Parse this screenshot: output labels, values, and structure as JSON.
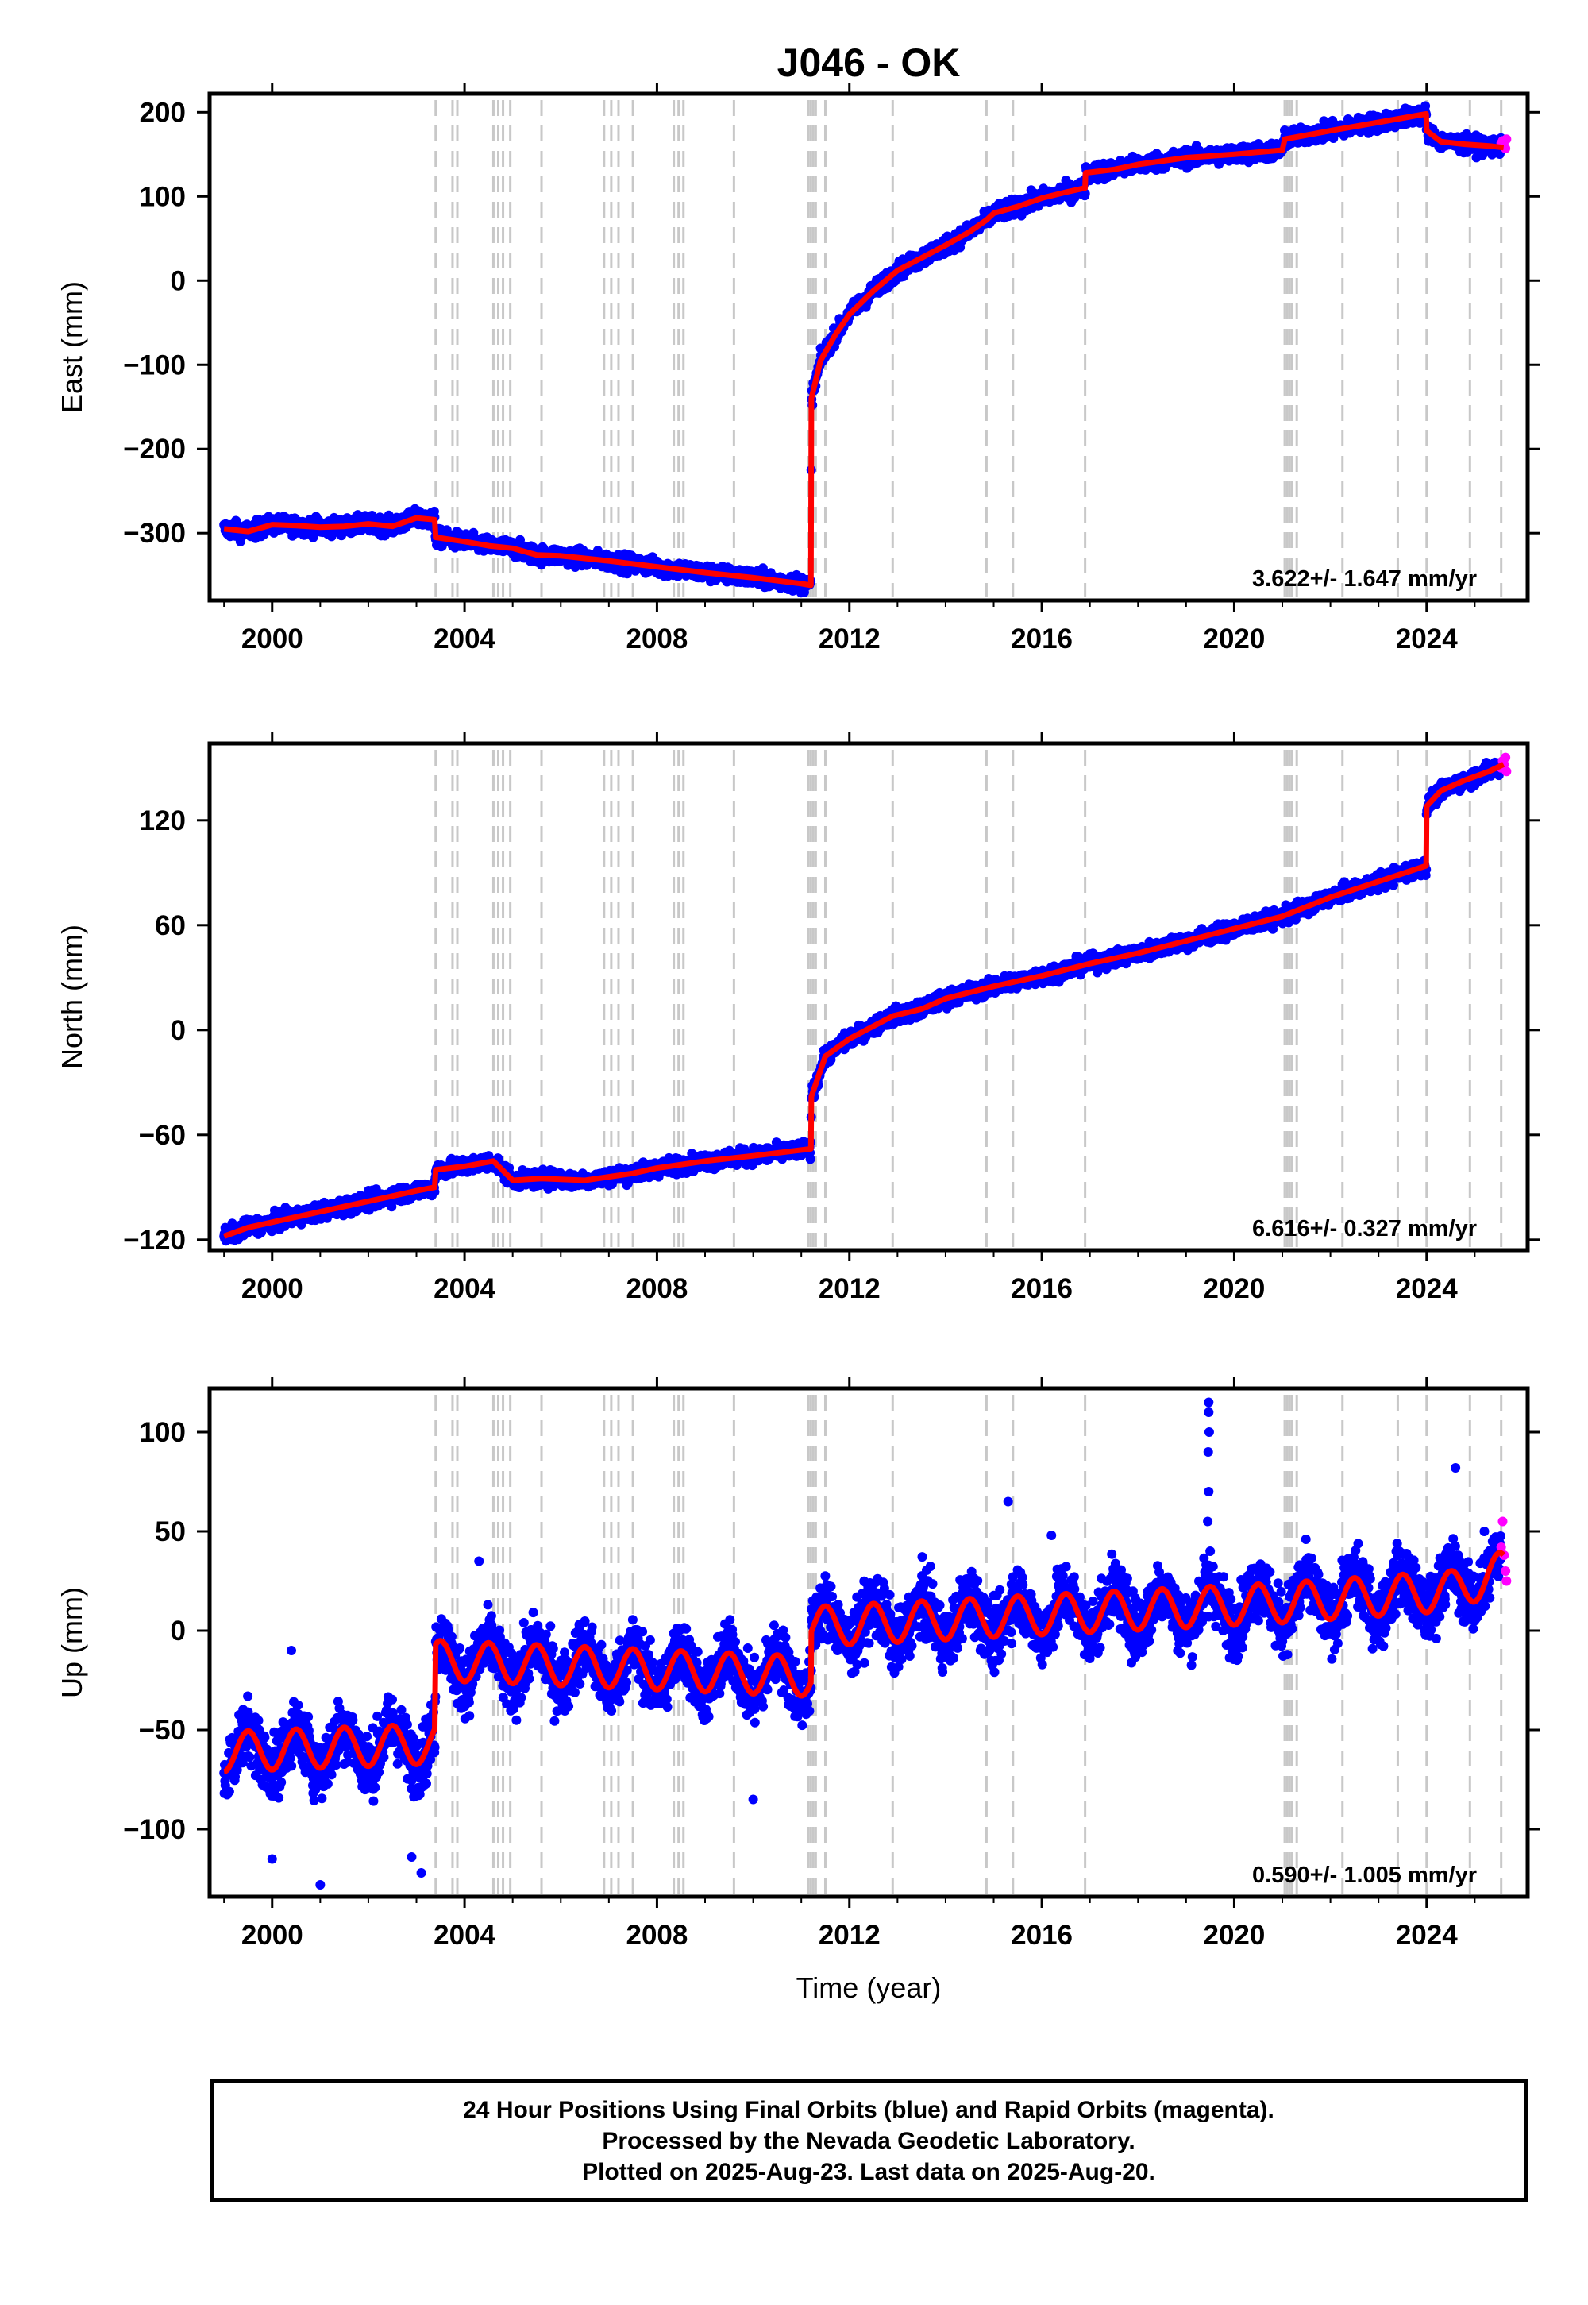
{
  "title": "J046 - OK",
  "x_label": "Time (year)",
  "footer": {
    "line1": "24 Hour Positions Using Final Orbits (blue) and Rapid Orbits (magenta).",
    "line2": "Processed by the Nevada Geodetic Laboratory.",
    "line3": "Plotted on 2025-Aug-23. Last data on 2025-Aug-20."
  },
  "colors": {
    "final_orbit_points": "#0000ff",
    "rapid_orbit_points": "#ff00ff",
    "model_fit": "#ff0000",
    "event_lines": "#c8c8c8"
  },
  "chart_data": [
    {
      "type": "scatter",
      "ylabel": "East (mm)",
      "rate": "3.622+/- 1.647 mm/yr",
      "xlim": [
        1998.7,
        2026.1
      ],
      "ylim": [
        -380,
        222
      ],
      "xticks": [
        2000,
        2004,
        2008,
        2012,
        2016,
        2020,
        2024
      ],
      "yticks": [
        -300,
        -200,
        -100,
        0,
        100,
        200
      ],
      "event_lines": [
        2003.4,
        2003.75,
        2003.85,
        2004.6,
        2004.7,
        2004.8,
        2004.95,
        2005.6,
        2006.9,
        2007.05,
        2007.2,
        2007.5,
        2008.35,
        2008.45,
        2008.55,
        2009.6,
        2011.15,
        2011.2,
        2011.25,
        2011.3,
        2011.5,
        2012.9,
        2014.85,
        2015.4,
        2016.9,
        2021.05,
        2021.1,
        2021.15,
        2021.2,
        2021.3,
        2022.25,
        2023.4,
        2024.0,
        2024.9,
        2025.55
      ],
      "model": [
        [
          1999.0,
          -295
        ],
        [
          1999.5,
          -298
        ],
        [
          2000.0,
          -290
        ],
        [
          2000.5,
          -291
        ],
        [
          2001.0,
          -293
        ],
        [
          2001.5,
          -292
        ],
        [
          2002.0,
          -289
        ],
        [
          2002.5,
          -292
        ],
        [
          2003.0,
          -282
        ],
        [
          2003.38,
          -284
        ],
        [
          2003.4,
          -305
        ],
        [
          2004.0,
          -310
        ],
        [
          2004.5,
          -315
        ],
        [
          2005.0,
          -318
        ],
        [
          2005.5,
          -326
        ],
        [
          2006.0,
          -327
        ],
        [
          2007.0,
          -333
        ],
        [
          2008.0,
          -340
        ],
        [
          2009.0,
          -347
        ],
        [
          2010.0,
          -353
        ],
        [
          2011.0,
          -360
        ],
        [
          2011.2,
          -362
        ],
        [
          2011.21,
          -140
        ],
        [
          2011.4,
          -95
        ],
        [
          2011.7,
          -65
        ],
        [
          2012.0,
          -40
        ],
        [
          2012.5,
          -12
        ],
        [
          2013.0,
          12
        ],
        [
          2013.5,
          27
        ],
        [
          2014.0,
          42
        ],
        [
          2014.5,
          58
        ],
        [
          2014.85,
          72
        ],
        [
          2015.0,
          80
        ],
        [
          2015.5,
          88
        ],
        [
          2016.0,
          98
        ],
        [
          2016.5,
          105
        ],
        [
          2016.9,
          110
        ],
        [
          2016.91,
          128
        ],
        [
          2017.5,
          132
        ],
        [
          2018.0,
          138
        ],
        [
          2019.0,
          146
        ],
        [
          2020.0,
          150
        ],
        [
          2021.0,
          155
        ],
        [
          2021.05,
          168
        ],
        [
          2022.0,
          178
        ],
        [
          2023.0,
          188
        ],
        [
          2023.99,
          198
        ],
        [
          2024.0,
          178
        ],
        [
          2024.3,
          165
        ],
        [
          2024.8,
          162
        ],
        [
          2025.3,
          160
        ],
        [
          2025.6,
          158
        ]
      ],
      "noise": 7
    },
    {
      "type": "scatter",
      "ylabel": "North (mm)",
      "rate": "6.616+/- 0.327 mm/yr",
      "xlim": [
        1998.7,
        2026.1
      ],
      "ylim": [
        -126,
        164
      ],
      "xticks": [
        2000,
        2004,
        2008,
        2012,
        2016,
        2020,
        2024
      ],
      "yticks": [
        -120,
        -60,
        0,
        60,
        120
      ],
      "event_lines": [
        2003.4,
        2003.75,
        2003.85,
        2004.6,
        2004.7,
        2004.8,
        2004.95,
        2005.6,
        2006.9,
        2007.05,
        2007.2,
        2007.5,
        2008.35,
        2008.45,
        2008.55,
        2009.6,
        2011.15,
        2011.2,
        2011.25,
        2011.3,
        2011.5,
        2012.9,
        2014.85,
        2015.4,
        2016.9,
        2021.05,
        2021.1,
        2021.15,
        2021.2,
        2021.3,
        2022.25,
        2023.4,
        2024.0,
        2024.9,
        2025.55
      ],
      "model": [
        [
          1999.0,
          -118
        ],
        [
          1999.5,
          -113
        ],
        [
          2000.0,
          -110
        ],
        [
          2001.0,
          -104
        ],
        [
          2002.0,
          -98
        ],
        [
          2003.0,
          -92
        ],
        [
          2003.38,
          -90
        ],
        [
          2003.4,
          -80
        ],
        [
          2004.0,
          -78
        ],
        [
          2004.6,
          -75
        ],
        [
          2005.0,
          -86
        ],
        [
          2005.6,
          -85
        ],
        [
          2006.5,
          -86
        ],
        [
          2007.0,
          -84
        ],
        [
          2007.5,
          -82
        ],
        [
          2008.0,
          -79
        ],
        [
          2009.0,
          -75
        ],
        [
          2010.0,
          -72
        ],
        [
          2011.2,
          -68
        ],
        [
          2011.21,
          -38
        ],
        [
          2011.5,
          -15
        ],
        [
          2012.0,
          -5
        ],
        [
          2012.9,
          8
        ],
        [
          2013.5,
          12
        ],
        [
          2014.0,
          18
        ],
        [
          2015.0,
          25
        ],
        [
          2016.0,
          31
        ],
        [
          2017.0,
          38
        ],
        [
          2018.0,
          44
        ],
        [
          2019.0,
          51
        ],
        [
          2020.0,
          58
        ],
        [
          2021.0,
          65
        ],
        [
          2022.0,
          76
        ],
        [
          2023.0,
          85
        ],
        [
          2023.99,
          94
        ],
        [
          2024.0,
          128
        ],
        [
          2024.3,
          137
        ],
        [
          2024.8,
          143
        ],
        [
          2025.3,
          148
        ],
        [
          2025.6,
          152
        ]
      ],
      "noise": 3.2
    },
    {
      "type": "scatter",
      "ylabel": "Up (mm)",
      "rate": "0.590+/- 1.005 mm/yr",
      "xlim": [
        1998.7,
        2026.1
      ],
      "ylim": [
        -134,
        122
      ],
      "xticks": [
        2000,
        2004,
        2008,
        2012,
        2016,
        2020,
        2024
      ],
      "yticks": [
        -100,
        -50,
        0,
        50,
        100
      ],
      "event_lines": [
        2003.4,
        2003.75,
        2003.85,
        2004.6,
        2004.7,
        2004.8,
        2004.95,
        2005.6,
        2006.9,
        2007.05,
        2007.2,
        2007.5,
        2008.35,
        2008.45,
        2008.55,
        2009.6,
        2011.15,
        2011.2,
        2011.25,
        2011.3,
        2011.5,
        2012.9,
        2014.85,
        2015.4,
        2016.9,
        2021.05,
        2021.1,
        2021.15,
        2021.2,
        2021.3,
        2022.25,
        2023.4,
        2024.0,
        2024.9,
        2025.55
      ],
      "model_trend": [
        [
          1999.0,
          -61
        ],
        [
          2003.38,
          -57
        ],
        [
          2003.4,
          -15
        ],
        [
          2011.2,
          -23
        ],
        [
          2011.21,
          2
        ],
        [
          2016.0,
          8
        ],
        [
          2021.0,
          14
        ],
        [
          2024.5,
          20
        ],
        [
          2025.6,
          30
        ]
      ],
      "seasonal_amplitude": 10,
      "seasonal_phase": 0.25,
      "noise": 11,
      "outliers": [
        [
          2019.47,
          115
        ],
        [
          2019.47,
          110
        ],
        [
          2019.48,
          100
        ],
        [
          2019.46,
          90
        ],
        [
          2019.47,
          70
        ],
        [
          2019.45,
          55
        ],
        [
          2019.5,
          40
        ],
        [
          2001.0,
          -128
        ],
        [
          2000.0,
          -115
        ],
        [
          2003.1,
          -122
        ],
        [
          2002.9,
          -114
        ],
        [
          2010.0,
          -85
        ],
        [
          2004.3,
          35
        ],
        [
          2015.3,
          65
        ],
        [
          2024.6,
          82
        ],
        [
          2025.2,
          50
        ],
        [
          2016.2,
          48
        ],
        [
          2000.4,
          -10
        ]
      ]
    }
  ],
  "rapid_points": [
    {
      "panel": 0,
      "points": [
        [
          2025.55,
          163
        ],
        [
          2025.58,
          166
        ],
        [
          2025.61,
          160
        ],
        [
          2025.64,
          157
        ],
        [
          2025.66,
          168
        ]
      ]
    },
    {
      "panel": 1,
      "points": [
        [
          2025.55,
          150
        ],
        [
          2025.58,
          154
        ],
        [
          2025.61,
          152
        ],
        [
          2025.64,
          156
        ],
        [
          2025.66,
          148
        ]
      ]
    },
    {
      "panel": 2,
      "points": [
        [
          2025.55,
          42
        ],
        [
          2025.58,
          55
        ],
        [
          2025.61,
          38
        ],
        [
          2025.64,
          30
        ],
        [
          2025.66,
          25
        ]
      ]
    }
  ]
}
